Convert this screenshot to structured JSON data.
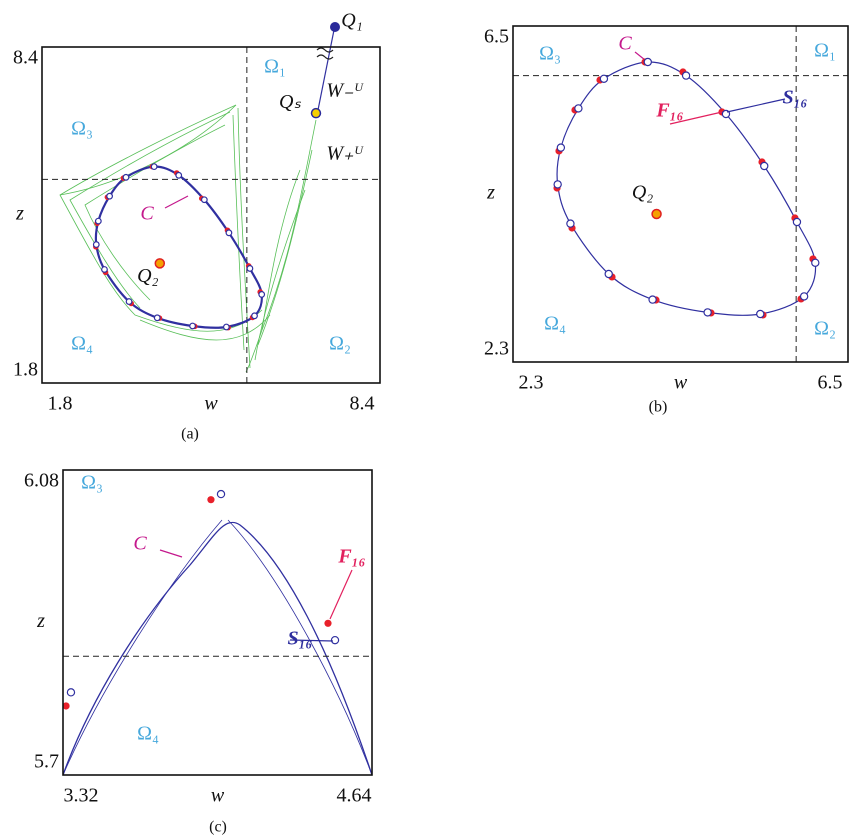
{
  "chart_data": [
    {
      "type": "phase",
      "caption": "(a)",
      "xlabel": "w",
      "ylabel": "z",
      "xlim": [
        1.8,
        8.4
      ],
      "ylim": [
        1.8,
        8.4
      ],
      "xticks": [
        1.8,
        8.4
      ],
      "yticks": [
        1.8,
        8.4
      ],
      "dashed_w": 5.8,
      "dashed_z": 5.8,
      "regions": [
        "Ω₁",
        "Ω₂",
        "Ω₃",
        "Ω₄"
      ],
      "points": [
        {
          "name": "Q₂",
          "w": 4.1,
          "z": 4.15,
          "color": "#f5a000"
        },
        {
          "name": "Qₛ",
          "w": 7.15,
          "z": 7.1,
          "color": "#f5d000"
        }
      ],
      "labels": [
        "C",
        "Q₁",
        "W₋ᵁ",
        "W₊ᵁ"
      ]
    },
    {
      "type": "phase",
      "caption": "(b)",
      "xlabel": "w",
      "ylabel": "z",
      "xlim": [
        2.3,
        6.5
      ],
      "ylim": [
        2.3,
        6.5
      ],
      "xticks": [
        2.3,
        6.5
      ],
      "yticks": [
        2.3,
        6.5
      ],
      "dashed_w": 5.85,
      "dashed_z": 5.88,
      "regions": [
        "Ω₁",
        "Ω₂",
        "Ω₃",
        "Ω₄"
      ],
      "points": [
        {
          "name": "Q₂",
          "w": 4.1,
          "z": 4.15,
          "color": "#f5a000"
        }
      ],
      "series": [
        {
          "name": "F₁₆",
          "color": "#e8202a",
          "w": [
            3.955,
            4.431,
            4.92,
            5.422,
            5.835,
            6.061,
            5.911,
            5.434,
            4.782,
            4.093,
            3.541,
            3.04,
            2.852,
            2.877,
            3.077,
            3.391
          ],
          "z": [
            6.05,
            5.925,
            5.425,
            4.8,
            4.1,
            3.588,
            3.088,
            2.888,
            2.913,
            3.075,
            3.363,
            3.975,
            4.475,
            4.938,
            5.45,
            5.825
          ]
        },
        {
          "name": "S₁₆",
          "color": "#ffffff",
          "w": [
            3.99,
            4.47,
            4.97,
            5.45,
            5.86,
            6.09,
            5.95,
            5.4,
            4.74,
            4.05,
            3.5,
            3.02,
            2.86,
            2.9,
            3.12,
            3.44
          ],
          "z": [
            6.05,
            5.88,
            5.4,
            4.75,
            4.05,
            3.54,
            3.12,
            2.9,
            2.92,
            3.08,
            3.4,
            4.03,
            4.52,
            4.98,
            5.47,
            5.84
          ]
        }
      ],
      "labels": [
        "C"
      ]
    },
    {
      "type": "phase",
      "caption": "(c)",
      "xlabel": "w",
      "ylabel": "z",
      "xlim": [
        3.32,
        4.64
      ],
      "ylim": [
        5.7,
        6.08
      ],
      "xticks": [
        3.32,
        4.64
      ],
      "yticks": [
        5.7,
        6.08
      ],
      "dashed_z": 5.848,
      "regions": [
        "Ω₃",
        "Ω₄"
      ],
      "series": [
        {
          "name": "F₁₆",
          "color": "#e8202a",
          "w": [
            3.952,
            4.452,
            3.333
          ],
          "z": [
            6.043,
            5.889,
            5.786
          ]
        },
        {
          "name": "S₁₆",
          "color": "#ffffff",
          "w": [
            3.995,
            4.482,
            3.354
          ],
          "z": [
            6.05,
            5.868,
            5.803
          ]
        }
      ],
      "labels": [
        "C"
      ]
    }
  ]
}
